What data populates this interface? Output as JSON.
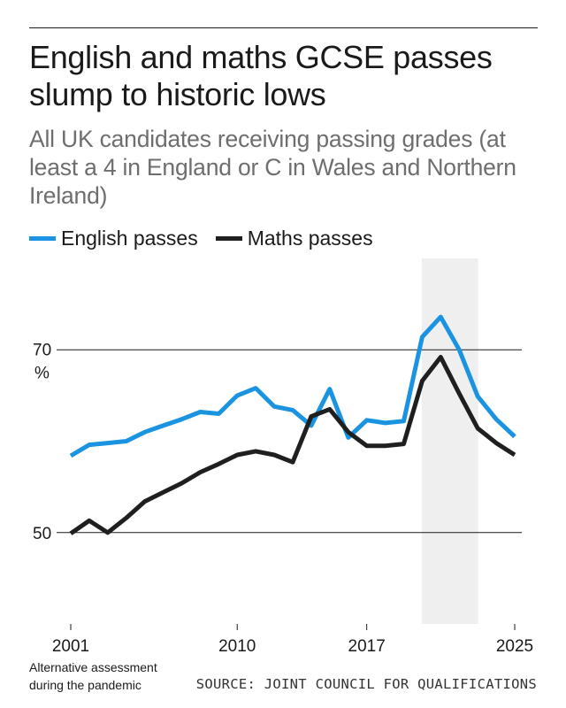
{
  "header": {
    "title": "English and maths GCSE passes slump to historic lows",
    "subtitle": "All UK candidates receiving passing grades (at least a 4 in England or C in Wales and Northern Ireland)"
  },
  "colors": {
    "english": "#1a94e0",
    "maths": "#1f1f1f",
    "shade": "#efefef",
    "grid": "#1a1a1a"
  },
  "chart_data": {
    "type": "line",
    "title": "English and maths GCSE passes slump to historic lows",
    "ylabel": "%",
    "xlim": [
      2001,
      2025
    ],
    "ylim": [
      40,
      80
    ],
    "yticks": [
      50,
      70
    ],
    "xticks": [
      "2001",
      "2010",
      "2017",
      "2025"
    ],
    "gridlines": [
      50,
      70
    ],
    "shaded_region": {
      "from": 2020,
      "to": 2023,
      "label": "Alternative assessment during the pandemic"
    },
    "x": [
      2001,
      2002,
      2003,
      2004,
      2005,
      2006,
      2007,
      2008,
      2009,
      2010,
      2011,
      2012,
      2013,
      2014,
      2015,
      2016,
      2017,
      2018,
      2019,
      2020,
      2021,
      2022,
      2023,
      2024,
      2025
    ],
    "series": [
      {
        "name": "English passes",
        "values": [
          58.4,
          59.6,
          59.8,
          60.0,
          61.0,
          61.7,
          62.4,
          63.2,
          63.0,
          65.0,
          65.8,
          63.8,
          63.4,
          61.7,
          65.7,
          60.4,
          62.3,
          62.0,
          62.2,
          71.4,
          73.6,
          70.0,
          64.9,
          62.4,
          60.5
        ]
      },
      {
        "name": "Maths passes",
        "values": [
          49.9,
          51.3,
          50.0,
          51.6,
          53.4,
          54.4,
          55.4,
          56.6,
          57.5,
          58.5,
          58.9,
          58.5,
          57.7,
          62.7,
          63.5,
          61.0,
          59.5,
          59.5,
          59.7,
          66.6,
          69.2,
          65.2,
          61.4,
          59.8,
          58.5
        ]
      }
    ]
  },
  "footnote": {
    "line1": "Alternative assessment",
    "line2": "during the pandemic"
  },
  "source": "SOURCE: JOINT COUNCIL FOR QUALIFICATIONS"
}
